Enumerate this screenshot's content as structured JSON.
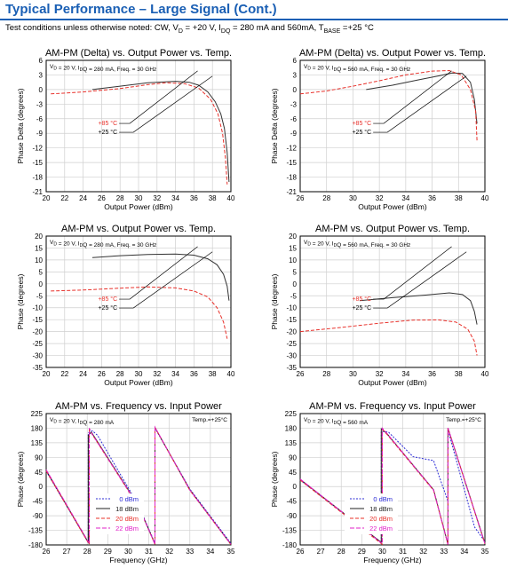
{
  "header": {
    "title": "Typical Performance – Large Signal (Cont.)",
    "conditions": "Test conditions unless otherwise noted: CW, V₄ = +20 V, I₄₄ = 280 mA and 560mA, T₄₄₄₄ =+25 °C"
  },
  "colors": {
    "brand": "#1a5fb4",
    "hot": "#e8302a",
    "room": "#333333",
    "blue": "#2b2bd6",
    "magenta": "#e020c8"
  },
  "chart_data": [
    {
      "type": "line",
      "title": "AM-PM (Delta) vs. Output Power vs. Temp.",
      "note": "V_D = 20 V, I_DQ = 280 mA, Freq. = 30 GHz",
      "xlabel": "Output Power (dBm)",
      "ylabel": "Phase Delta (degrees)",
      "xlim": [
        20,
        40
      ],
      "ylim": [
        -21,
        6
      ],
      "xticks": [
        20,
        22,
        24,
        26,
        28,
        30,
        32,
        34,
        36,
        38,
        40
      ],
      "yticks": [
        6,
        3,
        0,
        -3,
        -6,
        -9,
        -12,
        -15,
        -18,
        -21
      ],
      "annotations": [
        "+85 °C",
        "+25 °C"
      ],
      "series": [
        {
          "name": "+25 °C",
          "x": [
            25,
            28,
            31,
            34,
            35.5,
            36.5,
            37.5,
            38.3,
            38.9,
            39.3,
            39.6,
            39.8
          ],
          "y": [
            0,
            0.7,
            1.4,
            1.7,
            1.5,
            0.9,
            -0.5,
            -2.5,
            -5,
            -8,
            -13,
            -19
          ]
        },
        {
          "name": "+85 °C",
          "x": [
            20.5,
            24,
            28,
            31,
            33,
            35,
            36.5,
            37.8,
            38.6,
            39.1,
            39.4,
            39.6
          ],
          "y": [
            -0.9,
            -0.5,
            0.2,
            1,
            1.4,
            1.2,
            0.3,
            -2,
            -5,
            -9,
            -14,
            -19.5
          ]
        }
      ]
    },
    {
      "type": "line",
      "title": "AM-PM (Delta) vs. Output Power vs. Temp.",
      "note": "V_D = 20 V, I_DQ = 560 mA, Freq. = 30 GHz",
      "xlabel": "Output Power (dBm)",
      "ylabel": "Phase Delta (degrees)",
      "xlim": [
        26,
        40
      ],
      "ylim": [
        -21,
        6
      ],
      "xticks": [
        26,
        28,
        30,
        32,
        34,
        36,
        38,
        40
      ],
      "yticks": [
        6,
        3,
        0,
        -3,
        -6,
        -9,
        -12,
        -15,
        -18,
        -21
      ],
      "annotations": [
        "+85 °C",
        "+25 °C"
      ],
      "series": [
        {
          "name": "+25 °C",
          "x": [
            31,
            33,
            35,
            36.5,
            37.5,
            38.3,
            38.9,
            39.2,
            39.4
          ],
          "y": [
            0,
            0.9,
            2,
            2.8,
            3.4,
            3.3,
            1.5,
            -2,
            -7
          ]
        },
        {
          "name": "+85 °C",
          "x": [
            26,
            28,
            30,
            32,
            34,
            36,
            37.3,
            38.2,
            38.9,
            39.3,
            39.4
          ],
          "y": [
            -0.9,
            -0.3,
            0.7,
            1.8,
            3,
            3.8,
            3.9,
            3,
            0,
            -4.5,
            -10.5
          ]
        }
      ]
    },
    {
      "type": "line",
      "title": "AM-PM vs. Output Power vs. Temp.",
      "note": "V_D = 20 V, I_DQ = 280 mA, Freq. = 30 GHz",
      "xlabel": "Output Power (dBm)",
      "ylabel": "Phase (degrees)",
      "xlim": [
        20,
        40
      ],
      "ylim": [
        -35,
        20
      ],
      "xticks": [
        20,
        22,
        24,
        26,
        28,
        30,
        32,
        34,
        36,
        38,
        40
      ],
      "yticks": [
        20,
        15,
        10,
        5,
        0,
        -5,
        -10,
        -15,
        -20,
        -25,
        -30,
        -35
      ],
      "annotations": [
        "+85 °C",
        "+25 °C"
      ],
      "series": [
        {
          "name": "+25 °C",
          "x": [
            25,
            28,
            31,
            34,
            36,
            37.5,
            38.5,
            39.2,
            39.6,
            39.8
          ],
          "y": [
            11,
            11.8,
            12.3,
            12.5,
            12,
            10.5,
            8,
            4,
            -1,
            -7
          ]
        },
        {
          "name": "+85 °C",
          "x": [
            20.5,
            24,
            28,
            31,
            34,
            36,
            37.5,
            38.5,
            39.2,
            39.6
          ],
          "y": [
            -3,
            -2.6,
            -1.8,
            -1.3,
            -1.7,
            -3,
            -5.5,
            -10,
            -16,
            -23
          ]
        }
      ]
    },
    {
      "type": "line",
      "title": "AM-PM vs. Output Power vs. Temp.",
      "note": "V_D = 20 V, I_DQ = 560 mA, Freq. = 30 GHz",
      "xlabel": "Output Power (dBm)",
      "ylabel": "Phase (degrees)",
      "xlim": [
        26,
        40
      ],
      "ylim": [
        -35,
        20
      ],
      "xticks": [
        26,
        28,
        30,
        32,
        34,
        36,
        38,
        40
      ],
      "yticks": [
        20,
        15,
        10,
        5,
        0,
        -5,
        -10,
        -15,
        -20,
        -25,
        -30,
        -35
      ],
      "annotations": [
        "+85 °C",
        "+25 °C"
      ],
      "series": [
        {
          "name": "+25 °C",
          "x": [
            30.5,
            33,
            35.5,
            37.3,
            38.3,
            38.9,
            39.2,
            39.4
          ],
          "y": [
            -7,
            -5.8,
            -4.7,
            -3.8,
            -4.5,
            -7,
            -11.5,
            -17
          ]
        },
        {
          "name": "+85 °C",
          "x": [
            26,
            29,
            32,
            34.5,
            36.5,
            37.8,
            38.7,
            39.2,
            39.4
          ],
          "y": [
            -20,
            -18.3,
            -16.5,
            -15.2,
            -15.1,
            -16,
            -19,
            -24,
            -30
          ]
        }
      ]
    },
    {
      "type": "line",
      "title": "AM-PM vs. Frequency vs. Input Power",
      "note": "V_D = 20 V, I_DQ = 280 mA",
      "note2": "Temp.=+25°C",
      "xlabel": "Frequency (GHz)",
      "ylabel": "Phase (degrees)",
      "xlim": [
        26,
        35
      ],
      "ylim": [
        -180,
        225
      ],
      "xticks": [
        26,
        27,
        28,
        29,
        30,
        31,
        32,
        33,
        34,
        35
      ],
      "yticks": [
        225,
        180,
        135,
        90,
        45,
        0,
        -45,
        -90,
        -135,
        -180
      ],
      "legend_position": "bottom-left",
      "series": [
        {
          "name": "0 dBm",
          "x": [
            26,
            28.05,
            28.05,
            28.25,
            28.5,
            30.5,
            31.3,
            31.3,
            33,
            35
          ],
          "y": [
            47,
            -173,
            165,
            172,
            158,
            -58,
            -175,
            180,
            -8,
            -175
          ]
        },
        {
          "name": "18 dBm",
          "x": [
            26,
            28.05,
            28.05,
            28.2,
            30.5,
            31.3,
            31.3,
            33,
            35
          ],
          "y": [
            50,
            -172,
            158,
            168,
            -60,
            -177,
            182,
            -10,
            -178
          ]
        },
        {
          "name": "20 dBm",
          "x": [
            26,
            28.1,
            28.1,
            28.2,
            30.5,
            31.3,
            31.3,
            33,
            35
          ],
          "y": [
            48,
            -178,
            175,
            165,
            -62,
            -178,
            182,
            -12,
            -179
          ]
        },
        {
          "name": "22 dBm",
          "x": [
            26,
            28.1,
            28.1,
            28.2,
            30.5,
            31.3,
            31.3,
            33,
            35
          ],
          "y": [
            52,
            -175,
            180,
            166,
            -61,
            -178,
            183,
            -11,
            -178
          ]
        }
      ]
    },
    {
      "type": "line",
      "title": "AM-PM vs. Frequency vs. Input Power",
      "note": "V_D = 20 V, I_DQ = 560 mA",
      "note2": "Temp.=+25°C",
      "xlabel": "Frequency (GHz)",
      "ylabel": "Phase (degrees)",
      "xlim": [
        26,
        35
      ],
      "ylim": [
        -180,
        225
      ],
      "xticks": [
        26,
        27,
        28,
        29,
        30,
        31,
        32,
        33,
        34,
        35
      ],
      "yticks": [
        225,
        180,
        135,
        90,
        45,
        0,
        -45,
        -90,
        -135,
        -180
      ],
      "legend_position": "bottom-left",
      "series": [
        {
          "name": "0 dBm",
          "x": [
            26,
            29.95,
            29.95,
            30.3,
            31.5,
            32.5,
            33.2,
            33.2,
            34.5,
            35
          ],
          "y": [
            20,
            -172,
            170,
            168,
            92,
            80,
            -45,
            175,
            -125,
            -170
          ]
        },
        {
          "name": "18 dBm",
          "x": [
            26,
            29.95,
            29.95,
            30.2,
            32.5,
            33.2,
            33.2,
            35
          ],
          "y": [
            22,
            -172,
            178,
            165,
            -10,
            -178,
            180,
            -175
          ]
        },
        {
          "name": "20 dBm",
          "x": [
            26,
            30,
            30,
            30.2,
            32.5,
            33.2,
            33.2,
            35
          ],
          "y": [
            20,
            -178,
            176,
            163,
            -12,
            -179,
            180,
            -177
          ]
        },
        {
          "name": "22 dBm",
          "x": [
            26,
            30,
            30,
            30.2,
            32.5,
            33.2,
            33.2,
            35
          ],
          "y": [
            23,
            -176,
            180,
            166,
            -11,
            -179,
            181,
            -176
          ]
        }
      ]
    }
  ]
}
